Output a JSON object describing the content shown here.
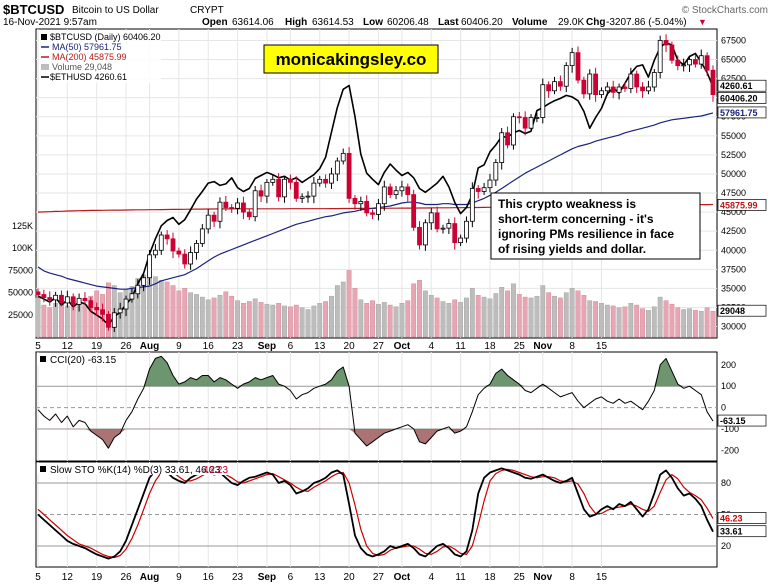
{
  "header": {
    "symbol": "$BTCUSD",
    "name": "Bitcoin to US Dollar",
    "exchange": "CRYPT",
    "watermark": "© StockCharts.com",
    "date": "16-Nov-2021 9:57am",
    "open_label": "Open",
    "open": "63614.06",
    "high_label": "High",
    "high": "63614.53",
    "low_label": "Low",
    "low": "60206.48",
    "last_label": "Last",
    "last": "60406.20",
    "volume_label": "Volume",
    "volume": "29.0K",
    "chg_label": "Chg",
    "chg": "-3207.86 (-5.04%)",
    "chg_arrow": "▼"
  },
  "legend": {
    "main": "$BTCUSD (Daily) 60406.20",
    "ma50": "MA(50) 57961.75",
    "ma200": "MA(200) 45875.99",
    "volume": "Volume 29,048",
    "eth": "$ETHUSD 4260.61"
  },
  "brand": "monicakingsley.co",
  "annotation": [
    "This crypto weakness is",
    "short-term concerning - it's",
    "ignoring PMs resilience in face",
    "of rising yields and dollar."
  ],
  "cci_title": "CCI(20) -63.15",
  "sto_title": "Slow STO %K(14) %D(3) 33.61, 46.23",
  "sto_title_d": "46.23",
  "colors": {
    "up": "#000000",
    "down": "#cc0033",
    "ma50": "#1a237e",
    "ma200": "#b71c1c",
    "eth": "#000000",
    "vol_up": "#bdbdbd",
    "vol_down": "#e8a6b4",
    "cci_fill": "#5d8a5e",
    "cci_fill_neg": "#9c5c5c",
    "brand_bg": "#ffff00"
  },
  "chart_data": {
    "type": "candlestick",
    "x_ticks": [
      "5",
      "12",
      "19",
      "26",
      "Aug",
      "9",
      "16",
      "23",
      "Sep",
      "6",
      "13",
      "20",
      "27",
      "Oct",
      "4",
      "11",
      "18",
      "25",
      "Nov",
      "8",
      "15"
    ],
    "price_axis": [
      "67500",
      "65000",
      "62500",
      "60000",
      "57500",
      "55000",
      "52500",
      "50000",
      "47500",
      "45000",
      "42500",
      "40000",
      "37500",
      "35000",
      "32500",
      "30000"
    ],
    "volume_axis": [
      "125K",
      "100K",
      "75000",
      "50000",
      "25000"
    ],
    "price_ylim": [
      28500,
      69000
    ],
    "price_labels": {
      "eth": "4260.61",
      "last": "60406.20",
      "ma50": "57961.75",
      "ma200": "45875.99",
      "volume": "29048"
    },
    "closes": [
      34200,
      33800,
      33500,
      34100,
      33100,
      33900,
      32900,
      33700,
      33400,
      32500,
      32200,
      31600,
      29900,
      31800,
      32300,
      33600,
      34300,
      35400,
      36400,
      39400,
      40000,
      42000,
      41500,
      39900,
      39500,
      38200,
      39700,
      40900,
      42800,
      44600,
      43800,
      46300,
      45600,
      45500,
      46200,
      45000,
      44400,
      47800,
      47100,
      48900,
      49300,
      47000,
      49300,
      48900,
      46800,
      47000,
      47100,
      48800,
      49300,
      48800,
      50000,
      51700,
      52700,
      46800,
      46100,
      46400,
      44900,
      44700,
      46100,
      48300,
      47300,
      47800,
      48300,
      47300,
      43000,
      40700,
      43600,
      44900,
      42800,
      42900,
      43500,
      41000,
      41600,
      43800,
      48100,
      47700,
      48200,
      49200,
      51500,
      55400,
      53800,
      57500,
      57400,
      56000,
      57400,
      57400,
      61700,
      60900,
      62100,
      61500,
      64200,
      65900,
      62300,
      60500,
      63100,
      60400,
      60900,
      61400,
      60700,
      61400,
      61200,
      63100,
      61400,
      60900,
      61400,
      63300,
      67500,
      66900,
      64900,
      64200,
      64300,
      65000,
      64400,
      65500,
      63600,
      60400
    ],
    "eth_overlay": [
      34000,
      33600,
      33200,
      33800,
      32800,
      33500,
      32600,
      33200,
      33000,
      32000,
      31500,
      31000,
      30200,
      31300,
      31900,
      32900,
      33800,
      35600,
      37000,
      39500,
      41500,
      43200,
      43900,
      44300,
      43400,
      44000,
      45300,
      46700,
      47700,
      48800,
      49000,
      48500,
      48700,
      49500,
      48200,
      47700,
      48100,
      49400,
      49800,
      50200,
      49900,
      49500,
      49700,
      49200,
      49500,
      48900,
      49400,
      49900,
      50700,
      52200,
      55500,
      58700,
      61100,
      61600,
      57500,
      52600,
      50100,
      49300,
      48600,
      50200,
      51300,
      50500,
      49800,
      50200,
      49500,
      48100,
      47600,
      48200,
      48800,
      49700,
      48300,
      46300,
      44800,
      45600,
      47300,
      50800,
      51200,
      52900,
      53800,
      54900,
      54800,
      55400,
      55700,
      55300,
      55600,
      58300,
      58700,
      59200,
      59600,
      59900,
      60300,
      60100,
      59600,
      58200,
      56000,
      57400,
      58600,
      60500,
      61300,
      60600,
      61900,
      63200,
      64100,
      64300,
      62700,
      64900,
      66600,
      67200,
      66900,
      64900,
      64300,
      65400,
      65800,
      64600,
      63300,
      61400
    ],
    "ma50": [
      37800,
      37300,
      37000,
      36800,
      36600,
      36300,
      36100,
      35900,
      35700,
      35500,
      35300,
      35200,
      35100,
      35000,
      34900,
      34900,
      35000,
      35100,
      35200,
      35300,
      35600,
      36000,
      36200,
      36400,
      36600,
      36800,
      37200,
      37600,
      38100,
      38600,
      39100,
      39500,
      39800,
      40100,
      40400,
      40700,
      41000,
      41300,
      41600,
      41900,
      42200,
      42500,
      42800,
      43100,
      43400,
      43600,
      43800,
      44000,
      44200,
      44400,
      44500,
      44700,
      44900,
      45000,
      45100,
      45300,
      45400,
      45500,
      45600,
      45700,
      45800,
      46000,
      46200,
      46300,
      46300,
      46200,
      46000,
      46000,
      46000,
      46100,
      46100,
      46000,
      46000,
      46000,
      46200,
      46500,
      46800,
      47200,
      47600,
      48100,
      48600,
      49100,
      49600,
      50100,
      50500,
      50900,
      51300,
      51700,
      52100,
      52500,
      52900,
      53300,
      53600,
      53800,
      54000,
      54300,
      54500,
      54700,
      54900,
      55100,
      55400,
      55600,
      55800,
      56000,
      56200,
      56400,
      56700,
      56900,
      57100,
      57200,
      57300,
      57400,
      57500,
      57600,
      57800,
      58000
    ],
    "ma200": [
      45000,
      45030,
      45060,
      45090,
      45110,
      45140,
      45160,
      45180,
      45200,
      45220,
      45230,
      45240,
      45250,
      45260,
      45270,
      45280,
      45290,
      45300,
      45300,
      45310,
      45320,
      45330,
      45340,
      45350,
      45360,
      45370,
      45380,
      45390,
      45400,
      45410,
      45410,
      45420,
      45420,
      45420,
      45430,
      45430,
      45430,
      45440,
      45440,
      45440,
      45440,
      45440,
      45440,
      45450,
      45450,
      45450,
      45450,
      45450,
      45450,
      45450,
      45460,
      45460,
      45470,
      45470,
      45480,
      45480,
      45490,
      45490,
      45500,
      45500,
      45510,
      45510,
      45520,
      45520,
      45530,
      45540,
      45540,
      45550,
      45560,
      45560,
      45570,
      45580,
      45580,
      45590,
      45600,
      45610,
      45620,
      45630,
      45640,
      45650,
      45660,
      45670,
      45680,
      45690,
      45700,
      45710,
      45720,
      45730,
      45740,
      45750,
      45760,
      45770,
      45780,
      45790,
      45800,
      45810,
      45820,
      45830,
      45840,
      45850,
      45860,
      45870,
      45880,
      45890,
      45900,
      45910,
      45920,
      45930,
      45940,
      45950,
      45960,
      45970,
      45980,
      45990,
      45990,
      46000
    ],
    "volume": [
      44000,
      36000,
      33000,
      38000,
      40000,
      35000,
      42000,
      39000,
      37000,
      46000,
      52000,
      48000,
      61000,
      58000,
      50000,
      54000,
      57000,
      66000,
      70000,
      73000,
      68000,
      64000,
      62000,
      58000,
      52000,
      55000,
      50000,
      48000,
      45000,
      42000,
      44000,
      47000,
      51000,
      46000,
      41000,
      38000,
      40000,
      43000,
      39000,
      37000,
      36000,
      38000,
      35000,
      34000,
      36000,
      33000,
      31000,
      35000,
      38000,
      40000,
      46000,
      58000,
      62000,
      75000,
      55000,
      42000,
      38000,
      41000,
      37000,
      39000,
      36000,
      34000,
      38000,
      41000,
      60000,
      64000,
      52000,
      47000,
      44000,
      40000,
      38000,
      42000,
      39000,
      44000,
      55000,
      47000,
      45000,
      43000,
      49000,
      56000,
      52000,
      60000,
      48000,
      45000,
      44000,
      46000,
      58000,
      50000,
      46000,
      44000,
      50000,
      55000,
      52000,
      47000,
      41000,
      40000,
      38000,
      36000,
      35000,
      33000,
      34000,
      38000,
      36000,
      32000,
      30000,
      34000,
      45000,
      41000,
      37000,
      33000,
      31000,
      32000,
      30000,
      29000,
      33000,
      29048
    ],
    "cci_axis": [
      "200",
      "100",
      "0",
      "-100",
      "-200"
    ],
    "cci_ylim": [
      -250,
      260
    ],
    "cci_value_label": "-63.15",
    "cci": [
      -10,
      -40,
      -60,
      -30,
      -70,
      -40,
      -90,
      -60,
      -70,
      -110,
      -130,
      -150,
      -190,
      -140,
      -120,
      -60,
      -20,
      40,
      90,
      180,
      230,
      240,
      210,
      150,
      110,
      120,
      140,
      130,
      150,
      150,
      120,
      140,
      130,
      110,
      90,
      110,
      120,
      140,
      130,
      140,
      150,
      110,
      100,
      80,
      40,
      60,
      70,
      90,
      100,
      110,
      130,
      170,
      190,
      100,
      -120,
      -150,
      -180,
      -160,
      -140,
      -120,
      -110,
      -100,
      -90,
      -80,
      -100,
      -160,
      -170,
      -140,
      -110,
      -100,
      -90,
      -120,
      -110,
      -90,
      -20,
      60,
      90,
      110,
      160,
      180,
      150,
      130,
      110,
      80,
      70,
      90,
      110,
      90,
      70,
      50,
      60,
      70,
      30,
      0,
      20,
      40,
      50,
      30,
      20,
      40,
      20,
      30,
      10,
      -10,
      30,
      80,
      200,
      230,
      170,
      110,
      90,
      100,
      80,
      60,
      -20,
      -63.15
    ],
    "sto_axis": [
      "80",
      "50",
      "20"
    ],
    "sto_ylim": [
      0,
      100
    ],
    "sto_value_labels": {
      "d": "46.23",
      "k": "33.61"
    },
    "sto_k": [
      50,
      45,
      40,
      35,
      30,
      25,
      22,
      20,
      18,
      15,
      12,
      10,
      8,
      10,
      15,
      25,
      40,
      55,
      70,
      85,
      92,
      95,
      90,
      85,
      82,
      80,
      85,
      88,
      90,
      92,
      88,
      90,
      85,
      80,
      78,
      82,
      85,
      86,
      88,
      90,
      88,
      80,
      82,
      78,
      70,
      72,
      75,
      80,
      82,
      85,
      90,
      92,
      88,
      60,
      30,
      18,
      12,
      10,
      12,
      15,
      20,
      18,
      20,
      22,
      18,
      12,
      10,
      15,
      20,
      22,
      18,
      12,
      10,
      15,
      35,
      70,
      85,
      90,
      92,
      94,
      92,
      90,
      88,
      85,
      84,
      86,
      88,
      85,
      82,
      80,
      82,
      85,
      70,
      55,
      48,
      50,
      55,
      58,
      55,
      60,
      58,
      62,
      55,
      48,
      55,
      70,
      88,
      92,
      85,
      75,
      68,
      70,
      65,
      58,
      45,
      33.61
    ],
    "sto_d": [
      55,
      50,
      45,
      40,
      35,
      30,
      26,
      22,
      20,
      18,
      15,
      12,
      10,
      9,
      11,
      17,
      27,
      40,
      55,
      70,
      82,
      90,
      92,
      90,
      86,
      82,
      82,
      84,
      87,
      90,
      90,
      90,
      88,
      85,
      81,
      80,
      82,
      84,
      86,
      88,
      89,
      86,
      83,
      80,
      76,
      73,
      72,
      76,
      79,
      82,
      86,
      89,
      90,
      80,
      59,
      36,
      20,
      13,
      11,
      12,
      16,
      18,
      19,
      20,
      20,
      17,
      13,
      12,
      15,
      19,
      20,
      17,
      13,
      12,
      20,
      40,
      63,
      82,
      89,
      92,
      93,
      92,
      90,
      88,
      86,
      85,
      86,
      86,
      85,
      82,
      81,
      82,
      79,
      70,
      58,
      51,
      51,
      54,
      56,
      57,
      58,
      60,
      58,
      55,
      53,
      58,
      71,
      83,
      88,
      84,
      76,
      71,
      68,
      64,
      56,
      46.23
    ]
  }
}
